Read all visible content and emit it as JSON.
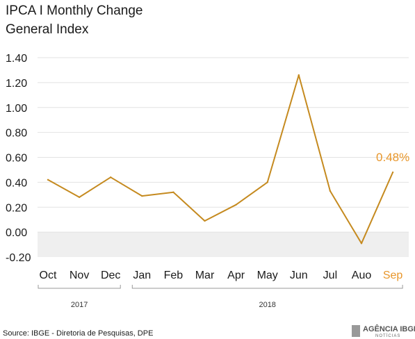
{
  "chart_data": {
    "type": "line",
    "title": "IPCA I Monthly Change",
    "subtitle": "General Index",
    "categories": [
      "Oct",
      "Nov",
      "Dec",
      "Jan",
      "Feb",
      "Mar",
      "Apr",
      "May",
      "Jun",
      "Jul",
      "Auo",
      "Sep"
    ],
    "series": [
      {
        "values": [
          0.42,
          0.28,
          0.44,
          0.29,
          0.32,
          0.09,
          0.22,
          0.4,
          1.26,
          0.33,
          -0.09,
          0.48
        ]
      }
    ],
    "ylim": [
      -0.2,
      1.4
    ],
    "yticks": [
      "1.40",
      "1.20",
      "1.00",
      "0.80",
      "0.60",
      "0.40",
      "0.20",
      "0.00",
      "-0.20"
    ],
    "year_groups": [
      {
        "label": "2017",
        "start": 0,
        "end": 2
      },
      {
        "label": "2018",
        "start": 3,
        "end": 11
      }
    ],
    "highlight_label": "0.48%",
    "highlight_index": 11,
    "line_color": "#c58a1f",
    "highlight_color": "#e8962a",
    "negative_band_color": "#efefef",
    "grid": true
  },
  "footer": {
    "source": "Source: IBGE - Diretoria de Pesquisas, DPE",
    "logo_main": "AGÊNCIA IBGE",
    "logo_sub": "NOTÍCIAS"
  }
}
